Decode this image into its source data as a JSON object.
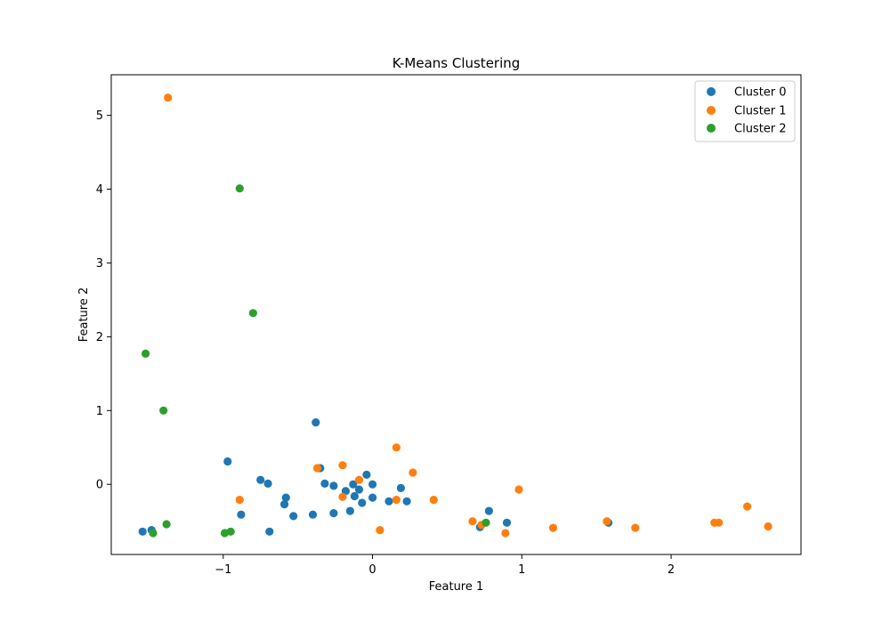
{
  "chart_data": {
    "type": "scatter",
    "title": "K-Means Clustering",
    "xlabel": "Feature 1",
    "ylabel": "Feature 2",
    "xlim": [
      -1.75,
      2.87
    ],
    "ylim": [
      -0.95,
      5.55
    ],
    "xticks": [
      -1,
      0,
      1,
      2
    ],
    "yticks": [
      0,
      1,
      2,
      3,
      4,
      5
    ],
    "xtick_labels": [
      "−1",
      "0",
      "1",
      "2"
    ],
    "ytick_labels": [
      "0",
      "1",
      "2",
      "3",
      "4",
      "5"
    ],
    "grid": false,
    "legend_position": "top-right",
    "series": [
      {
        "name": "Cluster 0",
        "color": "#1f77b4",
        "points": [
          [
            -1.54,
            -0.64
          ],
          [
            -1.48,
            -0.62
          ],
          [
            -0.97,
            0.31
          ],
          [
            -0.88,
            -0.41
          ],
          [
            -0.75,
            0.06
          ],
          [
            -0.7,
            0.01
          ],
          [
            -0.69,
            -0.64
          ],
          [
            -0.58,
            -0.18
          ],
          [
            -0.59,
            -0.27
          ],
          [
            -0.53,
            -0.43
          ],
          [
            -0.4,
            -0.41
          ],
          [
            -0.38,
            0.84
          ],
          [
            -0.35,
            0.22
          ],
          [
            -0.32,
            0.01
          ],
          [
            -0.26,
            -0.02
          ],
          [
            -0.26,
            -0.39
          ],
          [
            -0.18,
            -0.09
          ],
          [
            -0.15,
            -0.36
          ],
          [
            -0.13,
            0.0
          ],
          [
            -0.12,
            -0.16
          ],
          [
            -0.09,
            -0.07
          ],
          [
            -0.07,
            -0.25
          ],
          [
            -0.04,
            0.13
          ],
          [
            0.0,
            -0.18
          ],
          [
            0.0,
            0.0
          ],
          [
            0.11,
            -0.23
          ],
          [
            0.19,
            -0.05
          ],
          [
            0.23,
            -0.23
          ],
          [
            0.72,
            -0.58
          ],
          [
            0.78,
            -0.36
          ],
          [
            0.9,
            -0.52
          ],
          [
            1.58,
            -0.52
          ]
        ]
      },
      {
        "name": "Cluster 1",
        "color": "#ff7f0e",
        "points": [
          [
            -1.37,
            5.24
          ],
          [
            -0.89,
            -0.21
          ],
          [
            -0.37,
            0.22
          ],
          [
            -0.2,
            0.26
          ],
          [
            -0.2,
            -0.17
          ],
          [
            -0.09,
            0.06
          ],
          [
            0.05,
            -0.62
          ],
          [
            0.16,
            0.5
          ],
          [
            0.16,
            -0.21
          ],
          [
            0.27,
            0.16
          ],
          [
            0.41,
            -0.21
          ],
          [
            0.67,
            -0.5
          ],
          [
            0.73,
            -0.55
          ],
          [
            0.89,
            -0.66
          ],
          [
            0.98,
            -0.07
          ],
          [
            1.21,
            -0.59
          ],
          [
            1.57,
            -0.5
          ],
          [
            1.76,
            -0.59
          ],
          [
            2.29,
            -0.52
          ],
          [
            2.32,
            -0.52
          ],
          [
            2.51,
            -0.3
          ],
          [
            2.65,
            -0.57
          ]
        ]
      },
      {
        "name": "Cluster 2",
        "color": "#2ca02c",
        "points": [
          [
            -1.52,
            1.77
          ],
          [
            -1.47,
            -0.66
          ],
          [
            -1.4,
            1.0
          ],
          [
            -1.38,
            -0.54
          ],
          [
            -0.99,
            -0.66
          ],
          [
            -0.95,
            -0.64
          ],
          [
            -0.89,
            4.01
          ],
          [
            -0.8,
            2.32
          ],
          [
            0.76,
            -0.52
          ]
        ]
      }
    ]
  }
}
